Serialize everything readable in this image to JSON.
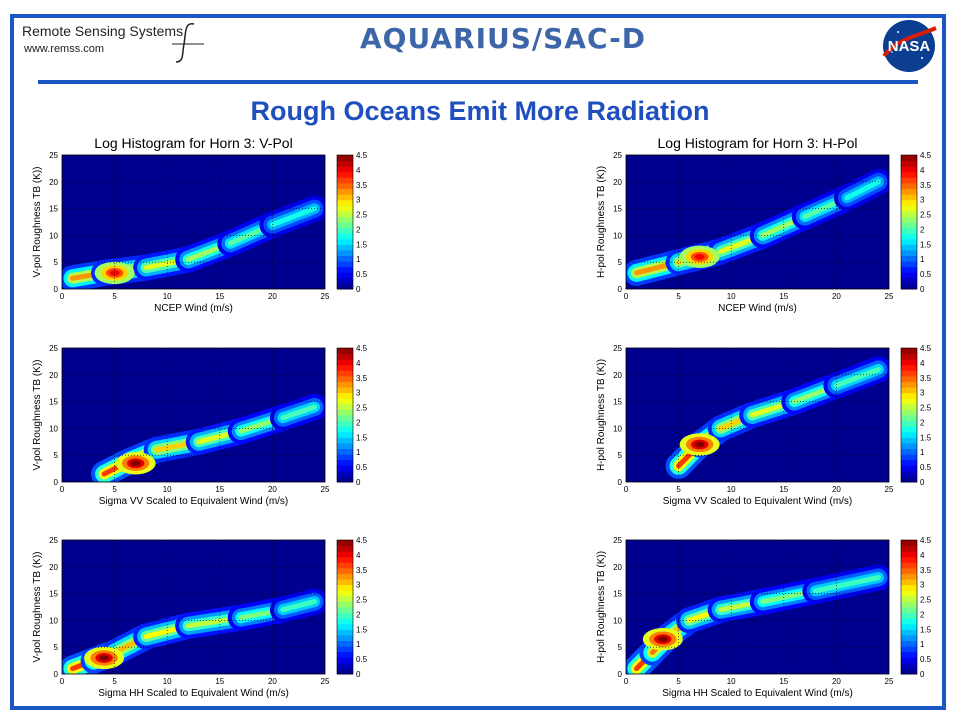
{
  "header": {
    "org_name": "Remote Sensing Systems",
    "org_url": "www.remss.com",
    "mission": "AQUARIUS/SAC-D",
    "agency_logo": "NASA",
    "headline": "Rough Oceans Emit More Radiation"
  },
  "colors": {
    "border": "#1a56c4",
    "headline": "#1f4fbf",
    "plot_bg": "#00008f"
  },
  "icons": [
    "rss-f-logo-icon",
    "nasa-meatball-icon"
  ],
  "chart_data": [
    {
      "id": "v-ncep",
      "type": "heatmap",
      "title": "Log Histogram for Horn 3: V-Pol",
      "xlabel": "NCEP Wind (m/s)",
      "ylabel": "V-pol Roughness TB (K))",
      "xlim": [
        0,
        25
      ],
      "ylim": [
        0,
        25
      ],
      "xticks": [
        0,
        5,
        10,
        15,
        20,
        25
      ],
      "yticks": [
        0,
        5,
        10,
        15,
        20,
        25
      ],
      "colorbar": {
        "range": [
          0,
          4.5
        ],
        "ticks": [
          0,
          0.5,
          1,
          1.5,
          2,
          2.5,
          3,
          3.5,
          4,
          4.5
        ]
      },
      "ridge": [
        [
          1,
          2
        ],
        [
          4,
          3
        ],
        [
          8,
          4
        ],
        [
          12,
          5.5
        ],
        [
          16,
          8.5
        ],
        [
          20,
          12
        ],
        [
          24,
          15
        ]
      ],
      "peak": [
        5,
        3
      ],
      "peak_value": 4.0,
      "grid": "dotted"
    },
    {
      "id": "h-ncep",
      "type": "heatmap",
      "title": "Log Histogram for Horn 3: H-Pol",
      "xlabel": "NCEP Wind (m/s)",
      "ylabel": "H-pol Roughness TB (K))",
      "xlim": [
        0,
        25
      ],
      "ylim": [
        0,
        25
      ],
      "xticks": [
        0,
        5,
        10,
        15,
        20,
        25
      ],
      "yticks": [
        0,
        5,
        10,
        15,
        20,
        25
      ],
      "colorbar": {
        "range": [
          0,
          4.5
        ],
        "ticks": [
          0,
          0.5,
          1,
          1.5,
          2,
          2.5,
          3,
          3.5,
          4,
          4.5
        ]
      },
      "ridge": [
        [
          1,
          3
        ],
        [
          5,
          5
        ],
        [
          9,
          7
        ],
        [
          13,
          10
        ],
        [
          17,
          13.5
        ],
        [
          21,
          17
        ],
        [
          24,
          20
        ]
      ],
      "peak": [
        7,
        6
      ],
      "peak_value": 4.0,
      "grid": "dotted"
    },
    {
      "id": "v-sigvv",
      "type": "heatmap",
      "title": "",
      "xlabel": "Sigma VV Scaled to Equivalent Wind (m/s)",
      "ylabel": "V-pol Roughness TB (K))",
      "xlim": [
        0,
        25
      ],
      "ylim": [
        0,
        25
      ],
      "xticks": [
        0,
        5,
        10,
        15,
        20,
        25
      ],
      "yticks": [
        0,
        5,
        10,
        15,
        20,
        25
      ],
      "colorbar": {
        "range": [
          0,
          4.5
        ],
        "ticks": [
          0,
          0.5,
          1,
          1.5,
          2,
          2.5,
          3,
          3.5,
          4,
          4.5
        ]
      },
      "ridge": [
        [
          4,
          1.5
        ],
        [
          6.5,
          4
        ],
        [
          9,
          6
        ],
        [
          13,
          7.5
        ],
        [
          17,
          9.5
        ],
        [
          21,
          12
        ],
        [
          24,
          14
        ]
      ],
      "peak": [
        7,
        3.5
      ],
      "peak_value": 4.5,
      "grid": "dotted"
    },
    {
      "id": "h-sigvv",
      "type": "heatmap",
      "title": "",
      "xlabel": "Sigma VV Scaled to Equivalent Wind (m/s)",
      "ylabel": "H-pol Roughness TB (K))",
      "xlim": [
        0,
        25
      ],
      "ylim": [
        0,
        25
      ],
      "xticks": [
        0,
        5,
        10,
        15,
        20,
        25
      ],
      "yticks": [
        0,
        5,
        10,
        15,
        20,
        25
      ],
      "colorbar": {
        "range": [
          0,
          4.5
        ],
        "ticks": [
          0,
          0.5,
          1,
          1.5,
          2,
          2.5,
          3,
          3.5,
          4,
          4.5
        ]
      },
      "ridge": [
        [
          5,
          3
        ],
        [
          7,
          7
        ],
        [
          9,
          10
        ],
        [
          12,
          12.5
        ],
        [
          16,
          15
        ],
        [
          20,
          18
        ],
        [
          24,
          21
        ]
      ],
      "peak": [
        7,
        7
      ],
      "peak_value": 4.5,
      "grid": "dotted"
    },
    {
      "id": "v-sighh",
      "type": "heatmap",
      "title": "",
      "xlabel": "Sigma HH Scaled to Equivalent Wind (m/s)",
      "ylabel": "V-pol Roughness TB (K))",
      "xlim": [
        0,
        25
      ],
      "ylim": [
        0,
        25
      ],
      "xticks": [
        0,
        5,
        10,
        15,
        20,
        25
      ],
      "yticks": [
        0,
        5,
        10,
        15,
        20,
        25
      ],
      "colorbar": {
        "range": [
          0,
          4.5
        ],
        "ticks": [
          0,
          0.5,
          1,
          1.5,
          2,
          2.5,
          3,
          3.5,
          4,
          4.5
        ]
      },
      "ridge": [
        [
          1,
          1
        ],
        [
          3,
          2.5
        ],
        [
          5,
          4
        ],
        [
          8,
          7
        ],
        [
          12,
          9
        ],
        [
          17,
          10.5
        ],
        [
          21,
          12
        ],
        [
          24,
          13.5
        ]
      ],
      "peak": [
        4,
        3
      ],
      "peak_value": 4.5,
      "grid": "dotted"
    },
    {
      "id": "h-sighh",
      "type": "heatmap",
      "title": "",
      "xlabel": "Sigma HH Scaled to Equivalent Wind (m/s)",
      "ylabel": "H-pol Roughness TB (K))",
      "xlim": [
        0,
        25
      ],
      "ylim": [
        0,
        25
      ],
      "xticks": [
        0,
        5,
        10,
        15,
        20,
        25
      ],
      "yticks": [
        0,
        5,
        10,
        15,
        20,
        25
      ],
      "colorbar": {
        "range": [
          0,
          4.5
        ],
        "ticks": [
          0,
          0.5,
          1,
          1.5,
          2,
          2.5,
          3,
          3.5,
          4,
          4.5
        ]
      },
      "ridge": [
        [
          1,
          1
        ],
        [
          2.5,
          4
        ],
        [
          4,
          7
        ],
        [
          6,
          10
        ],
        [
          9,
          12
        ],
        [
          13,
          13.5
        ],
        [
          18,
          15.5
        ],
        [
          24,
          18
        ]
      ],
      "peak": [
        3.5,
        6.5
      ],
      "peak_value": 4.5,
      "grid": "dotted"
    }
  ]
}
